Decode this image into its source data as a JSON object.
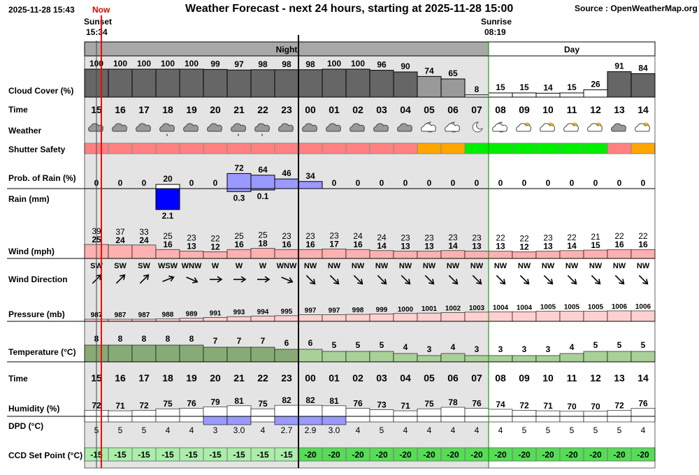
{
  "header": {
    "timestamp": "2025-11-28 15:43",
    "now_label": "Now",
    "title": "Weather Forecast - next 24 hours, starting at 2025-11-28 15:00",
    "source": "Source : OpenWeatherMap.org",
    "sunset_label": "Sunset",
    "sunset_time": "15:34",
    "sunrise_label": "Sunrise",
    "sunrise_time": "08:19"
  },
  "periods": {
    "night_label": "Night",
    "day_label": "Day"
  },
  "colors": {
    "night_bg": "#e4e4e4",
    "cloud_bar": "#666666",
    "now_line": "#ff0000",
    "unsafe": "#ff8080",
    "marginal": "#ffa500",
    "safe": "#00ee00",
    "rain_heavy": "#0000ff",
    "rain_light": "#9999ff",
    "wind_bar": "#ffb0b0",
    "pressure_bar": "#ffd0d0",
    "temp_night": "#88aa77",
    "temp_day": "#aad099",
    "ccd_night": "#aaeeaa",
    "ccd_day": "#55dd55"
  },
  "row_labels": {
    "cloud": "Cloud Cover (%)",
    "time": "Time",
    "weather": "Weather",
    "shutter": "Shutter Safety",
    "rain_prob": "Prob. of Rain (%)",
    "rain_mm": "Rain (mm)",
    "wind": "Wind (mph)",
    "wind_dir": "Wind Direction",
    "pressure": "Pressure (mb)",
    "temperature": "Temperature (°C)",
    "time2": "Time",
    "humidity": "Humidity (%)",
    "dpd": "DPD (°C)",
    "ccd": "CCD Set Point (°C)"
  },
  "chart_data": {
    "type": "table",
    "hours": [
      "15",
      "16",
      "17",
      "18",
      "19",
      "20",
      "21",
      "22",
      "23",
      "00",
      "01",
      "02",
      "03",
      "04",
      "05",
      "06",
      "07",
      "08",
      "09",
      "10",
      "11",
      "12",
      "13",
      "14"
    ],
    "night_hours": [
      "15",
      "16",
      "17",
      "18",
      "19",
      "20",
      "21",
      "22",
      "23",
      "00",
      "01",
      "02",
      "03",
      "04",
      "05",
      "06",
      "07"
    ],
    "cloud_cover": [
      100,
      100,
      100,
      100,
      100,
      99,
      97,
      98,
      98,
      98,
      100,
      100,
      96,
      90,
      74,
      65,
      8,
      15,
      15,
      14,
      15,
      26,
      91,
      84
    ],
    "weather_icons": [
      "cloud-icon",
      "cloud-icon",
      "cloud-icon",
      "rain-cloud-icon",
      "cloud-icon",
      "cloud-icon",
      "rain-cloud-icon",
      "rain-cloud-icon",
      "cloud-icon",
      "cloud-icon",
      "cloud-icon",
      "cloud-icon",
      "cloud-icon",
      "cloud-icon",
      "moon-cloud-icon",
      "moon-cloud-icon",
      "moon-icon",
      "moon-cloud-icon",
      "sun-cloud-icon",
      "sun-cloud-icon",
      "sun-cloud-icon",
      "sun-cloud-icon",
      "cloud-icon",
      "sun-cloud-icon"
    ],
    "shutter_safety": [
      "unsafe",
      "unsafe",
      "unsafe",
      "unsafe",
      "unsafe",
      "unsafe",
      "unsafe",
      "unsafe",
      "unsafe",
      "unsafe",
      "unsafe",
      "unsafe",
      "unsafe",
      "unsafe",
      "marginal",
      "marginal",
      "safe",
      "safe",
      "safe",
      "safe",
      "safe",
      "safe",
      "unsafe",
      "marginal"
    ],
    "rain_probability": [
      0,
      0,
      0,
      20,
      0,
      0,
      72,
      64,
      46,
      34,
      0,
      0,
      0,
      0,
      0,
      0,
      0,
      0,
      0,
      0,
      0,
      0,
      0,
      0
    ],
    "rain_mm": [
      null,
      null,
      null,
      "2.1",
      null,
      null,
      "0.3",
      "0.1",
      null,
      null,
      null,
      null,
      null,
      null,
      null,
      null,
      null,
      null,
      null,
      null,
      null,
      null,
      null,
      null
    ],
    "wind_gust": [
      39,
      37,
      33,
      25,
      23,
      22,
      25,
      25,
      23,
      23,
      23,
      24,
      24,
      23,
      23,
      23,
      23,
      22,
      22,
      23,
      22,
      21,
      22,
      22
    ],
    "wind_speed": [
      25,
      24,
      24,
      16,
      13,
      12,
      16,
      18,
      16,
      16,
      17,
      16,
      14,
      13,
      13,
      14,
      13,
      13,
      12,
      13,
      14,
      15,
      16,
      16
    ],
    "wind_direction": [
      "SW",
      "SW",
      "SW",
      "WSW",
      "WNW",
      "W",
      "W",
      "W",
      "WNW",
      "NW",
      "NW",
      "NW",
      "NW",
      "NW",
      "NW",
      "NW",
      "NW",
      "NW",
      "NW",
      "NW",
      "NW",
      "NW",
      "NW",
      "NW"
    ],
    "wind_direction_deg": [
      225,
      225,
      225,
      248,
      293,
      270,
      270,
      270,
      293,
      315,
      315,
      315,
      315,
      315,
      315,
      315,
      315,
      315,
      315,
      315,
      315,
      315,
      315,
      315
    ],
    "pressure": [
      987,
      987,
      987,
      988,
      989,
      991,
      993,
      994,
      995,
      997,
      997,
      998,
      999,
      1000,
      1001,
      1002,
      1003,
      1004,
      1004,
      1005,
      1005,
      1005,
      1006,
      1006
    ],
    "temperature": [
      8,
      8,
      8,
      8,
      8,
      7,
      7,
      7,
      6,
      6,
      5,
      5,
      5,
      4,
      3,
      4,
      3,
      3,
      3,
      3,
      4,
      5,
      5,
      5
    ],
    "humidity": [
      72,
      71,
      72,
      75,
      76,
      79,
      81,
      75,
      82,
      82,
      81,
      76,
      73,
      71,
      75,
      78,
      76,
      74,
      72,
      71,
      70,
      70,
      72,
      76
    ],
    "dpd": [
      "5",
      "5",
      "5",
      "4",
      "4",
      "3",
      "3.0",
      "4",
      "2.7",
      "2.9",
      "3.0",
      "4",
      "5",
      "4",
      "4",
      "4",
      "4",
      "4",
      "5",
      "5",
      "5",
      "5",
      "5",
      "4"
    ],
    "ccd_set_point": [
      -15,
      -15,
      -15,
      -15,
      -15,
      -15,
      -15,
      -15,
      -15,
      -20,
      -20,
      -20,
      -20,
      -20,
      -20,
      -20,
      -20,
      -20,
      -20,
      -20,
      -20,
      -20,
      -20,
      -20
    ],
    "now_hour": "15:43",
    "sunset": "15:34",
    "sunrise": "08:19"
  }
}
